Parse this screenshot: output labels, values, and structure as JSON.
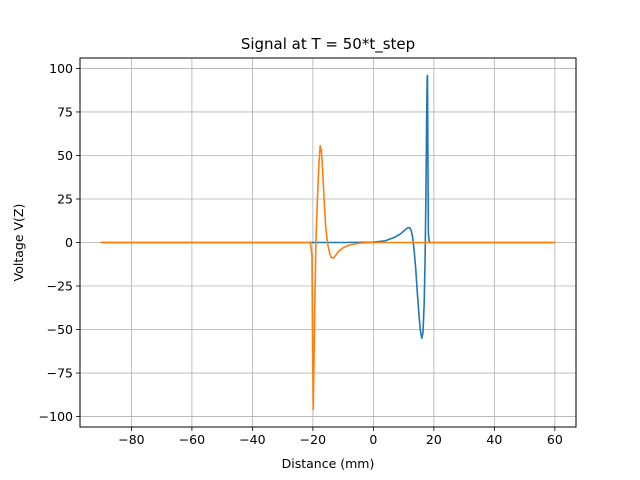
{
  "chart_data": {
    "type": "line",
    "title": "Signal at T = 50*t_step",
    "xlabel": "Distance (mm)",
    "ylabel": "Voltage V(Z)",
    "xlim": [
      -97,
      67
    ],
    "ylim": [
      -106,
      106
    ],
    "xticks": [
      -80,
      -60,
      -40,
      -20,
      0,
      20,
      40,
      60
    ],
    "xtick_labels": [
      "−80",
      "−60",
      "−40",
      "−20",
      "0",
      "20",
      "40",
      "60"
    ],
    "yticks": [
      -100,
      -75,
      -50,
      -25,
      0,
      25,
      50,
      75,
      100
    ],
    "ytick_labels": [
      "−100",
      "−75",
      "−50",
      "−25",
      "0",
      "25",
      "50",
      "75",
      "100"
    ],
    "grid": true,
    "series": [
      {
        "color": "#1f77b4",
        "x": [
          -90,
          -20,
          -10,
          0,
          4,
          7,
          9,
          10,
          11,
          11.5,
          12,
          12.5,
          13,
          13.5,
          14,
          14.5,
          15,
          15.5,
          16,
          16.4,
          16.8,
          17.1,
          17.4,
          17.6,
          17.8,
          17.9,
          18.0,
          18.2,
          18.5,
          19,
          20,
          30,
          60
        ],
        "y": [
          0,
          0,
          0,
          0.2,
          1,
          3,
          5,
          6.5,
          8,
          8.5,
          8.5,
          7,
          3,
          -5,
          -15,
          -28,
          -40,
          -50,
          -55,
          -52,
          -35,
          -10,
          30,
          70,
          95,
          96,
          60,
          5,
          0,
          0,
          0,
          0,
          0
        ]
      },
      {
        "color": "#ff7f0e",
        "x": [
          -90,
          -30,
          -22,
          -20.8,
          -20.3,
          -20.1,
          -19.9,
          -19.7,
          -19.4,
          -19,
          -18.5,
          -18,
          -17.6,
          -17.2,
          -16.8,
          -16.3,
          -15.8,
          -15.2,
          -14.5,
          -14,
          -13.3,
          -12.5,
          -11.5,
          -10,
          -8,
          -6,
          -4,
          -2,
          0,
          10,
          60
        ],
        "y": [
          0,
          0,
          0,
          0,
          -8,
          -60,
          -96,
          -75,
          -40,
          0,
          25,
          45,
          55.5,
          53,
          42,
          25,
          10,
          0,
          -6,
          -8.5,
          -9,
          -7.5,
          -5,
          -3,
          -1.5,
          -0.8,
          -0.3,
          -0.1,
          0,
          0,
          0
        ]
      }
    ]
  }
}
